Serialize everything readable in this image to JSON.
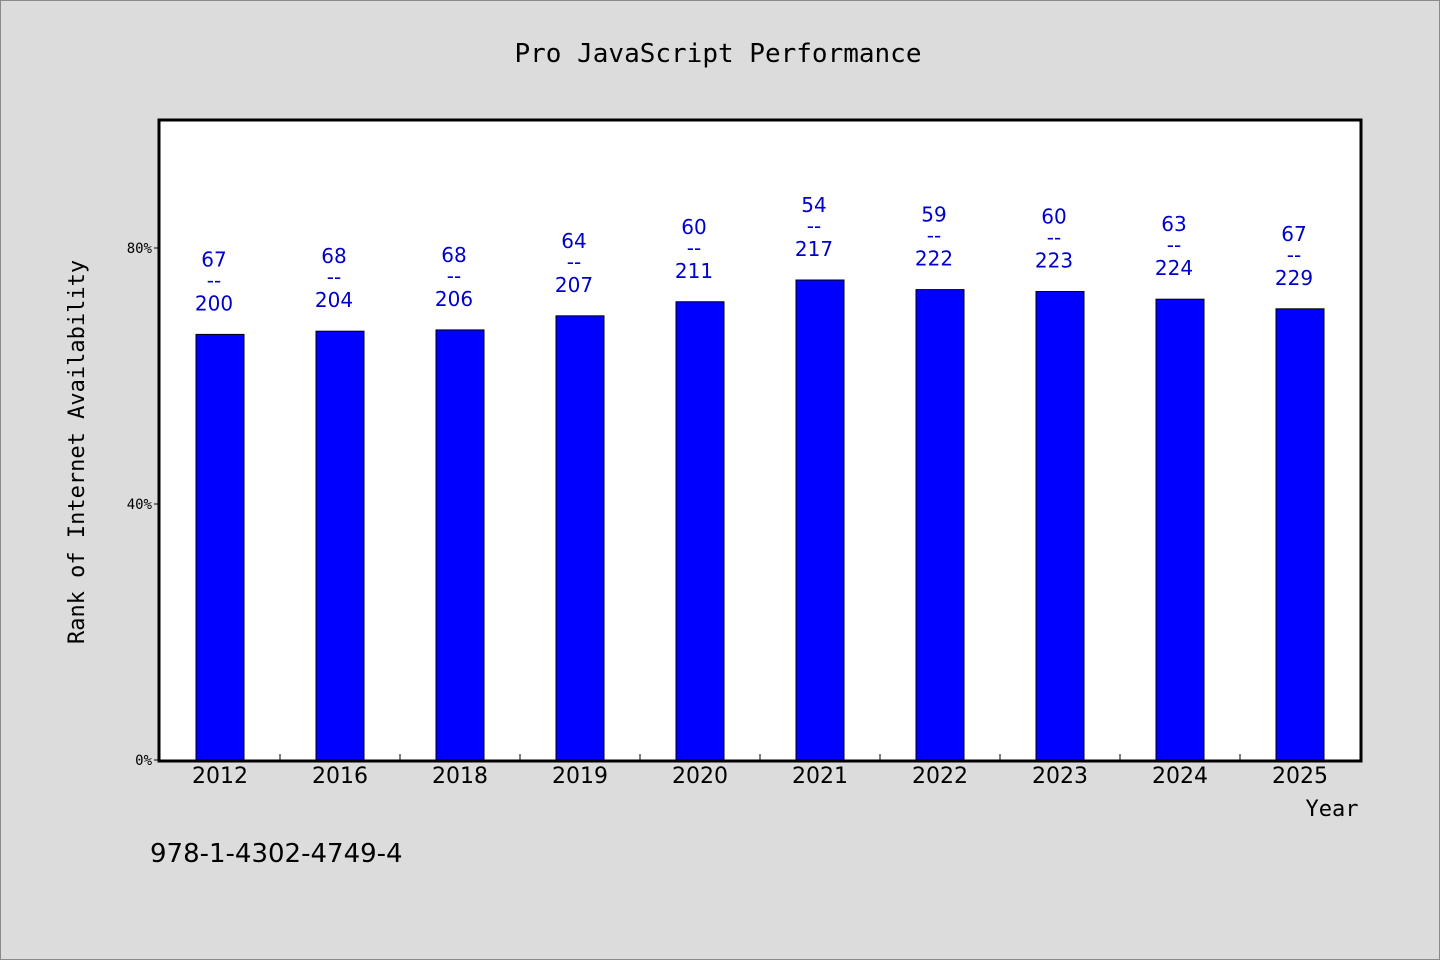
{
  "chart_data": {
    "type": "bar",
    "title": "Pro JavaScript Performance",
    "xlabel": "Year",
    "ylabel": "Rank of Internet Availability",
    "categories": [
      "2012",
      "2016",
      "2018",
      "2019",
      "2020",
      "2021",
      "2022",
      "2023",
      "2024",
      "2025"
    ],
    "series": [
      {
        "values": [
          66.5,
          67.0,
          67.2,
          69.4,
          71.6,
          75.0,
          73.5,
          73.2,
          72.0,
          70.5
        ],
        "label_top": [
          "67",
          "68",
          "68",
          "64",
          "60",
          "54",
          "59",
          "60",
          "63",
          "67"
        ],
        "label_bottom": [
          "200",
          "204",
          "206",
          "207",
          "211",
          "217",
          "222",
          "223",
          "224",
          "229"
        ],
        "color": "#0000ff"
      }
    ],
    "label_separator": "--",
    "yticks": [
      "0%",
      "40%",
      "80%"
    ],
    "ytick_values": [
      0,
      40,
      80
    ],
    "ylim": [
      0,
      100
    ],
    "grid": false,
    "legend": "none"
  },
  "footer": {
    "isbn": "978-1-4302-4749-4"
  }
}
